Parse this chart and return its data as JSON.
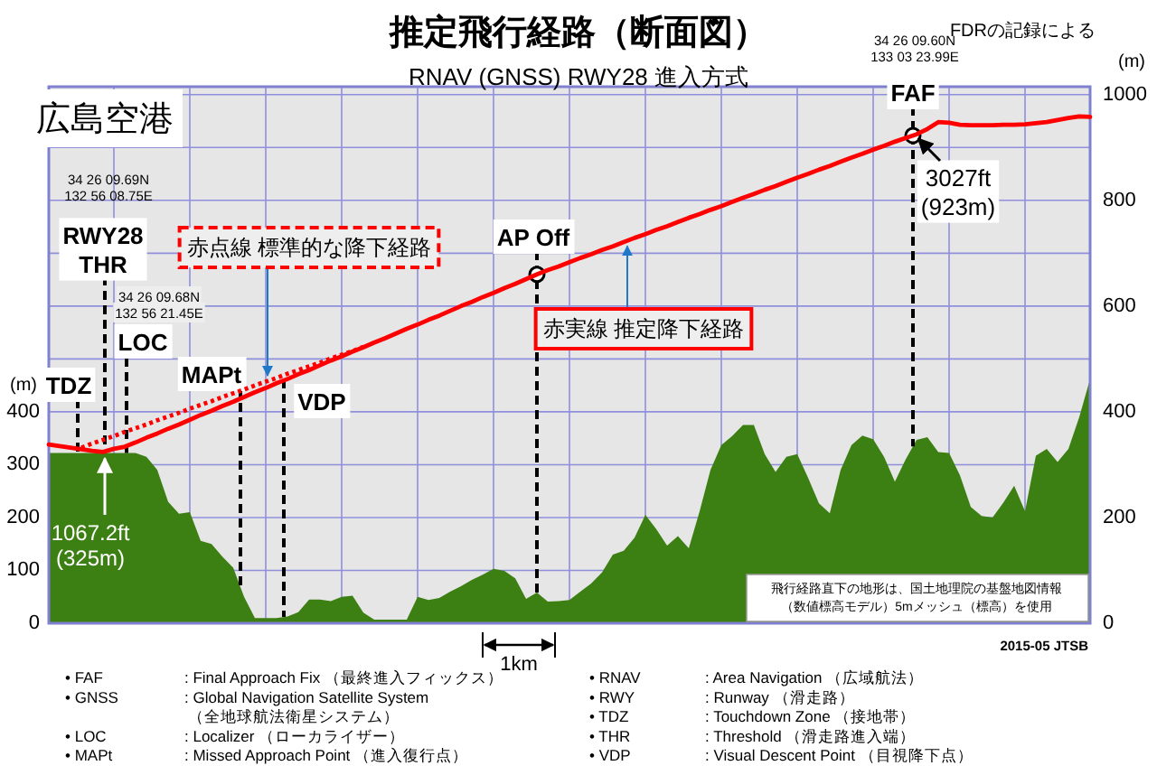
{
  "chart_data": [
    {
      "type": "area",
      "title": "推定飛行経路（断面図）",
      "subtitle": "RNAV (GNSS) RWY28 進入方式",
      "ylabel": "(m)",
      "y2label": "(m)",
      "categories": [
        null,
        null,
        null,
        null,
        null,
        null,
        null,
        null,
        null,
        null,
        null,
        null,
        null,
        null,
        null,
        null,
        null,
        null,
        null,
        null,
        null,
        null,
        null,
        null,
        null,
        null,
        null,
        null,
        null,
        null,
        null,
        null,
        null,
        null,
        null,
        null,
        null,
        null,
        null,
        null,
        null,
        null,
        null,
        null,
        null,
        null,
        null,
        null,
        null,
        null,
        null,
        null,
        null,
        null,
        null,
        null,
        null,
        null,
        null,
        null,
        null,
        null,
        null,
        null,
        null,
        null,
        null,
        null,
        null,
        null,
        null,
        null,
        null,
        null,
        null,
        null,
        null,
        null,
        null,
        null,
        null,
        null,
        null,
        null,
        null,
        null,
        null,
        null,
        null,
        null,
        null,
        null,
        null,
        null,
        null,
        null,
        null
      ],
      "color": "#3c7f12",
      "values": [
        322,
        322,
        322,
        322,
        322,
        322,
        322,
        322,
        322,
        315,
        290,
        230,
        207,
        210,
        156,
        150,
        126,
        105,
        50,
        10,
        10,
        10,
        13,
        21,
        45,
        45,
        42,
        50,
        52,
        20,
        7,
        7,
        7,
        7,
        50,
        44,
        48,
        60,
        70,
        82,
        92,
        103,
        99,
        85,
        46,
        58,
        41,
        42,
        44,
        60,
        75,
        96,
        130,
        137,
        162,
        205,
        178,
        147,
        165,
        142,
        212,
        290,
        337,
        354,
        375,
        375,
        320,
        286,
        315,
        320,
        275,
        227,
        208,
        290,
        337,
        355,
        348,
        315,
        268,
        310,
        347,
        352,
        324,
        322,
        280,
        220,
        203,
        200,
        228,
        260,
        212,
        317,
        330,
        305,
        330,
        390,
        462
      ],
      "ylim": [
        0,
        1015
      ],
      "yticks": [
        0,
        100,
        200,
        300,
        400,
        {
          "value": 500,
          "label": null
        },
        {
          "value": 600,
          "label": null
        },
        {
          "value": 700,
          "label": null
        },
        {
          "value": 800,
          "label": null
        },
        {
          "value": 900,
          "label": null
        },
        {
          "value": 1000,
          "label": null
        }
      ],
      "y2lim": [
        0,
        1015
      ],
      "y2ticks": [
        0,
        200,
        400,
        600,
        800,
        1000
      ],
      "grid": true,
      "annotations": [
        "FDRの記録による",
        "広島空港",
        "34 26 09.60N",
        "133 03 23.99E",
        "34 26 09.69N",
        "132 56 08.75E",
        "34 26 09.68N",
        "132 56 21.45E",
        "TDZ",
        "RWY28\nTHR",
        "LOC",
        "MAPt",
        "VDP",
        "AP Off",
        "FAF",
        "3027ft\n(923m)",
        "1067.2ft\n(325m)",
        "1km",
        "飛行経路直下の地形は、国土地理院の基盤地図情報",
        "（数値標高モデル）5mメッシュ（標高）を使用",
        "2015-05 JTSB",
        "• FAF",
        ": Final Approach Fix （最終進入フィックス）",
        "• GNSS",
        ": Global Navigation Satellite System",
        "（全地球航法衛星システム）",
        "• LOC",
        ": Localizer （ローカライザー）",
        "• MAPt",
        ": Missed Approach Point （進入復行点）",
        "• RNAV",
        ": Area Navigation （広域航法）",
        "• RWY",
        ": Runway （滑走路）",
        "• TDZ",
        ": Touchdown Zone （接地帯）",
        "• THR",
        ": Threshold （滑走路進入端）",
        "• VDP",
        ": Visual Descent Point （目視降下点）"
      ]
    },
    {
      "type": "line",
      "ylim": [
        0,
        1015
      ],
      "categories": [
        null,
        null,
        null,
        null,
        null,
        null,
        null,
        null,
        null,
        null,
        null,
        null,
        null,
        null,
        null,
        null,
        null,
        null,
        null,
        null,
        null,
        null,
        null,
        null,
        null,
        null,
        null,
        null,
        null,
        null,
        null,
        null,
        null,
        null,
        null,
        null,
        null,
        null,
        null,
        null,
        null,
        null,
        null,
        null,
        null,
        null,
        null,
        null,
        null,
        null,
        null,
        null,
        null,
        null,
        null,
        null,
        null,
        null,
        null,
        null,
        null,
        null,
        null,
        null,
        null,
        null,
        null,
        null,
        null,
        null,
        null,
        null,
        null,
        null,
        null,
        null,
        null,
        null,
        null,
        null,
        null,
        null,
        null,
        null,
        null,
        null,
        null,
        null,
        null,
        null,
        null,
        null,
        null,
        null,
        null,
        null,
        null
      ],
      "series": [
        {
          "name": "赤実線 推定降下経路",
          "color": "#ff0000",
          "line_style": "solid",
          "values": [
            338,
            335,
            332,
            329,
            326,
            324,
            330,
            334,
            342,
            351,
            359,
            368,
            376,
            385,
            394,
            402,
            411,
            419,
            428,
            437,
            445,
            454,
            462,
            471,
            479,
            488,
            497,
            505,
            514,
            522,
            531,
            539,
            548,
            557,
            565,
            574,
            582,
            591,
            600,
            608,
            617,
            625,
            634,
            642,
            651,
            660,
            668,
            675,
            683,
            691,
            698,
            706,
            713,
            721,
            729,
            736,
            744,
            751,
            759,
            767,
            774,
            782,
            789,
            797,
            805,
            812,
            820,
            827,
            835,
            843,
            850,
            858,
            865,
            873,
            881,
            888,
            896,
            903,
            911,
            918,
            925,
            935,
            948,
            947,
            943,
            942,
            942,
            942,
            943,
            943,
            944,
            946,
            948,
            952,
            956,
            959,
            958
          ]
        },
        {
          "name": "赤点線 標準的な降下経路",
          "color": "#ff0000",
          "line_style": "dotted",
          "values": [
            null,
            null,
            null,
            332,
            340,
            347,
            354,
            362,
            369,
            376,
            384,
            391,
            398,
            406,
            413,
            420,
            428,
            435,
            442,
            450,
            457,
            464,
            472,
            479,
            486,
            493,
            501,
            508,
            515,
            523,
            null,
            null,
            null,
            null,
            null,
            null,
            null,
            null,
            null,
            null,
            null,
            null,
            null,
            null,
            null,
            null,
            null,
            null,
            null,
            null,
            null,
            null,
            null,
            null,
            null,
            null,
            null,
            null,
            null,
            null,
            null,
            null,
            null,
            null,
            null,
            null,
            null,
            null,
            null,
            null,
            null,
            null,
            null,
            null,
            null,
            null,
            null,
            null,
            null,
            null,
            null,
            null,
            null,
            null,
            null,
            null,
            null,
            null,
            null,
            null,
            null,
            null,
            null,
            null,
            null,
            null,
            null
          ]
        }
      ]
    }
  ]
}
